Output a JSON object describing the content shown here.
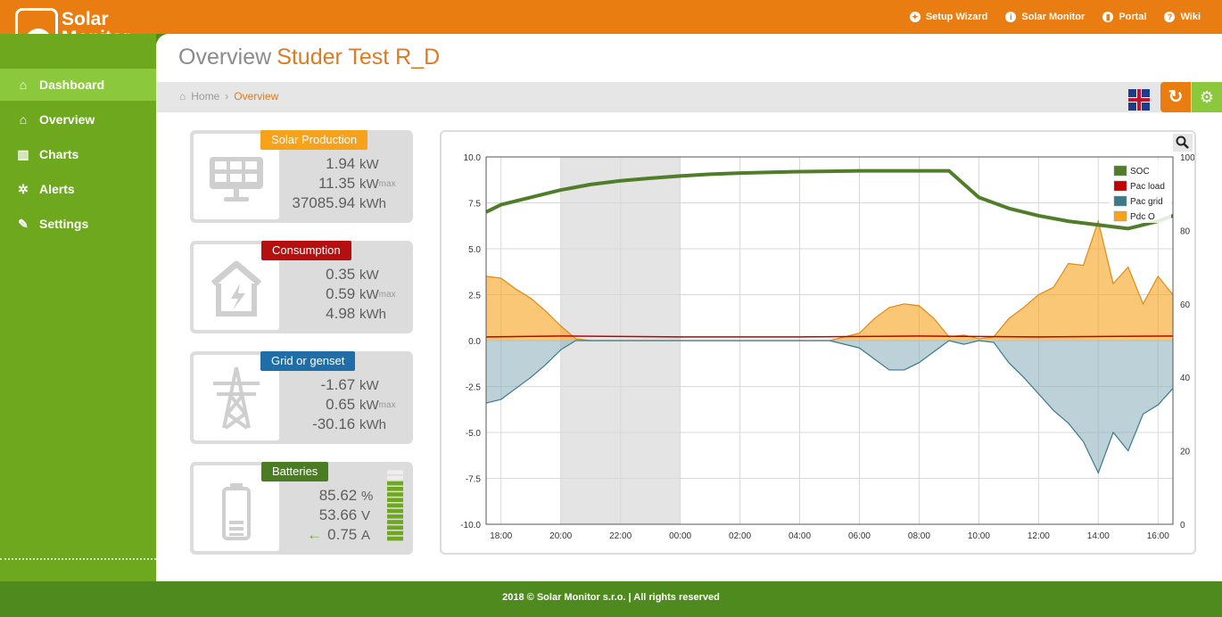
{
  "brand": {
    "line1": "Solar",
    "line2": "Monitor"
  },
  "toplinks": [
    {
      "label": "Setup Wizard",
      "icon": "wand-icon"
    },
    {
      "label": "Solar Monitor",
      "icon": "info-icon"
    },
    {
      "label": "Portal",
      "icon": "bar-chart-icon"
    },
    {
      "label": "Wiki",
      "icon": "help-icon"
    }
  ],
  "nav": [
    {
      "label": "Dashboard",
      "icon": "home-icon",
      "active": true
    },
    {
      "label": "Overview",
      "icon": "home-icon"
    },
    {
      "label": "Charts",
      "icon": "bar-chart-icon"
    },
    {
      "label": "Alerts",
      "icon": "bell-icon"
    },
    {
      "label": "Settings",
      "icon": "wrench-icon"
    }
  ],
  "page": {
    "title": "Overview",
    "device": "Studer Test R_D"
  },
  "breadcrumb": {
    "home": "Home",
    "current": "Overview"
  },
  "cards": {
    "solar": {
      "label": "Solar Production",
      "color": "#f7a21b",
      "v1": "1.94",
      "u1": "kW",
      "v2": "11.35",
      "u2": "kW",
      "max": "max",
      "v3": "37085.94",
      "u3": "kWh"
    },
    "consumption": {
      "label": "Consumption",
      "color": "#b50f0f",
      "v1": "0.35",
      "u1": "kW",
      "v2": "0.59",
      "u2": "kW",
      "max": "max",
      "v3": "4.98",
      "u3": "kWh"
    },
    "grid": {
      "label": "Grid or genset",
      "color": "#1f6ea8",
      "v1": "-1.67",
      "u1": "kW",
      "v2": "0.65",
      "u2": "kW",
      "max": "max",
      "v3": "-30.16",
      "u3": "kWh"
    },
    "batteries": {
      "label": "Batteries",
      "color": "#4a7d22",
      "v1": "85.62",
      "u1": "%",
      "v2": "53.66",
      "u2": "V",
      "v3": "0.75",
      "u3": "A",
      "level": 0.86
    }
  },
  "chart_data": {
    "type": "area",
    "x_ticks": [
      "18:00",
      "20:00",
      "22:00",
      "00:00",
      "02:00",
      "04:00",
      "06:00",
      "08:00",
      "10:00",
      "12:00",
      "14:00",
      "16:00"
    ],
    "y_left_ticks": [
      "10.0",
      "7.5",
      "5.0",
      "2.5",
      "0.0",
      "-2.5",
      "-5.0",
      "-7.5",
      "-10.0"
    ],
    "y_right_ticks": [
      "100",
      "80",
      "60",
      "40",
      "20",
      "0"
    ],
    "ylim_left": [
      -10,
      10
    ],
    "ylim_right": [
      0,
      100
    ],
    "night_band": [
      "20:00",
      "00:00"
    ],
    "legend": [
      {
        "name": "SOC",
        "color": "#4f7d2a"
      },
      {
        "name": "Pac load",
        "color": "#c00000"
      },
      {
        "name": "Pac grid",
        "color": "#3c7a8a"
      },
      {
        "name": "Pdc O",
        "color": "#f7a21b"
      }
    ],
    "series": [
      {
        "name": "SOC",
        "axis": "right",
        "x": [
          17.5,
          18,
          19,
          20,
          21,
          22,
          23,
          24,
          25,
          26,
          27,
          28,
          29,
          30,
          31,
          32,
          33,
          34,
          35,
          36,
          37,
          38,
          39,
          40,
          40.5
        ],
        "y": [
          85,
          87,
          89,
          91,
          92.5,
          93.5,
          94.2,
          94.8,
          95.3,
          95.6,
          95.8,
          96,
          96.1,
          96.2,
          96.2,
          96.2,
          96.2,
          89,
          86,
          84,
          82.5,
          81.5,
          80.5,
          82.5,
          84
        ]
      },
      {
        "name": "Pdc O",
        "axis": "left",
        "x": [
          17.5,
          18,
          18.5,
          19,
          19.5,
          20,
          20.5,
          21,
          22,
          23,
          24,
          25,
          26,
          27,
          28,
          29,
          30,
          30.5,
          31,
          31.5,
          32,
          32.5,
          33,
          33.5,
          34,
          34.5,
          35,
          35.5,
          36,
          36.5,
          37,
          37.5,
          38,
          38.5,
          39,
          39.5,
          40,
          40.5
        ],
        "y": [
          3.5,
          3.4,
          2.8,
          2.3,
          1.6,
          0.8,
          0.1,
          0,
          0,
          0,
          0,
          0,
          0,
          0,
          0,
          0,
          0.4,
          1.2,
          1.8,
          2.0,
          1.9,
          1.2,
          0.2,
          0.3,
          0.1,
          0.2,
          1.2,
          1.8,
          2.5,
          2.9,
          4.2,
          4.1,
          6.5,
          3.1,
          4.0,
          2.0,
          3.5,
          2.5
        ]
      },
      {
        "name": "Pac grid",
        "axis": "left",
        "x": [
          17.5,
          18,
          18.5,
          19,
          19.5,
          20,
          20.5,
          21,
          22,
          23,
          24,
          25,
          26,
          27,
          28,
          29,
          30,
          30.5,
          31,
          31.5,
          32,
          32.5,
          33,
          33.5,
          34,
          34.5,
          35,
          35.5,
          36,
          36.5,
          37,
          37.5,
          38,
          38.5,
          39,
          39.5,
          40,
          40.5
        ],
        "y": [
          -3.4,
          -3.2,
          -2.6,
          -2.0,
          -1.3,
          -0.5,
          0,
          0,
          0,
          0,
          0,
          0,
          0,
          0,
          0,
          0,
          -0.4,
          -1.0,
          -1.6,
          -1.6,
          -1.2,
          -0.6,
          0,
          -0.2,
          0,
          -0.1,
          -1.2,
          -2.0,
          -2.9,
          -3.8,
          -4.5,
          -5.5,
          -7.2,
          -5.0,
          -6.0,
          -4.0,
          -3.5,
          -2.6
        ]
      },
      {
        "name": "Pac load",
        "axis": "left",
        "x": [
          17.5,
          20,
          24,
          28,
          32,
          36,
          40.5
        ],
        "y": [
          0.2,
          0.25,
          0.2,
          0.2,
          0.25,
          0.2,
          0.25
        ]
      }
    ]
  },
  "footer": {
    "text": "2018 © Solar Monitor s.r.o. | All rights reserved"
  }
}
